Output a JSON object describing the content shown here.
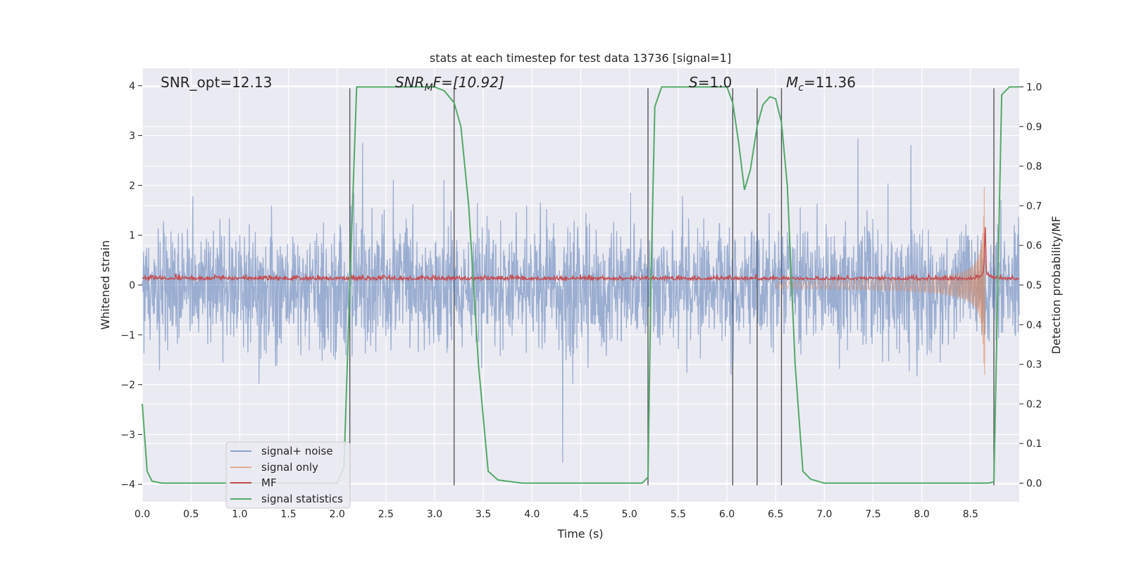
{
  "chart_data": {
    "type": "line",
    "title": "stats at each timestep for test data 13736 [signal=1]",
    "xlabel": "Time (s)",
    "ylabel_left": "Whitened strain",
    "ylabel_right": "Detection probability/MF",
    "xlim": [
      0.0,
      9.0
    ],
    "ylim_left": [
      -4.35,
      4.35
    ],
    "ylim_right": [
      -0.047,
      1.047
    ],
    "x_ticks": [
      0.0,
      0.5,
      1.0,
      1.5,
      2.0,
      2.5,
      3.0,
      3.5,
      4.0,
      4.5,
      5.0,
      5.5,
      6.0,
      6.5,
      7.0,
      7.5,
      8.0,
      8.5
    ],
    "y_ticks_left": [
      -4,
      -3,
      -2,
      -1,
      0,
      1,
      2,
      3,
      4
    ],
    "y_ticks_right": [
      0.0,
      0.1,
      0.2,
      0.3,
      0.4,
      0.5,
      0.6,
      0.7,
      0.8,
      0.9,
      1.0
    ],
    "grid": true,
    "annotations": {
      "snr_opt": "SNR_opt=12.13",
      "snr_mf_main": "SNR",
      "snr_mf_sub": "M",
      "snr_mf_tail": "F=[10.92]",
      "s_main": "S",
      "s_tail": "=1.0",
      "mc_main": "M",
      "mc_sub": "c",
      "mc_tail": "=11.36"
    },
    "vertical_lines_x": [
      2.13,
      3.2,
      5.19,
      6.06,
      6.31,
      6.56,
      8.74
    ],
    "legend_position": "lower-left",
    "series": [
      {
        "name": "signal+ noise",
        "color": "#4c72b0",
        "axis": "left",
        "description": "whitened noisy strain, amplitude approx +-2.5"
      },
      {
        "name": "signal only",
        "color": "#dd8452",
        "axis": "left",
        "description": "chirp signal growing to approx +-2.0 at t=8.65 s"
      },
      {
        "name": "MF",
        "color": "#c44e52",
        "axis": "right",
        "description": "matched filter output, approx 0.51 with spike to 0.63 at 8.65 s"
      },
      {
        "name": "signal statistics",
        "color": "#55a868",
        "axis": "right",
        "points": [
          [
            0.0,
            0.2
          ],
          [
            0.05,
            0.03
          ],
          [
            0.1,
            0.005
          ],
          [
            0.2,
            0.0
          ],
          [
            2.0,
            0.0
          ],
          [
            2.07,
            0.04
          ],
          [
            2.13,
            0.5
          ],
          [
            2.2,
            1.0
          ],
          [
            3.0,
            1.0
          ],
          [
            3.1,
            0.99
          ],
          [
            3.2,
            0.96
          ],
          [
            3.27,
            0.9
          ],
          [
            3.35,
            0.7
          ],
          [
            3.45,
            0.3
          ],
          [
            3.55,
            0.03
          ],
          [
            3.65,
            0.008
          ],
          [
            3.9,
            0.0
          ],
          [
            5.13,
            0.0
          ],
          [
            5.19,
            0.015
          ],
          [
            5.22,
            0.5
          ],
          [
            5.26,
            0.95
          ],
          [
            5.33,
            1.0
          ],
          [
            6.0,
            1.0
          ],
          [
            6.06,
            0.96
          ],
          [
            6.12,
            0.86
          ],
          [
            6.18,
            0.74
          ],
          [
            6.24,
            0.79
          ],
          [
            6.31,
            0.9
          ],
          [
            6.37,
            0.955
          ],
          [
            6.44,
            0.975
          ],
          [
            6.5,
            0.97
          ],
          [
            6.56,
            0.91
          ],
          [
            6.62,
            0.75
          ],
          [
            6.7,
            0.3
          ],
          [
            6.78,
            0.03
          ],
          [
            6.86,
            0.01
          ],
          [
            7.0,
            0.0
          ],
          [
            8.68,
            0.0
          ],
          [
            8.74,
            0.003
          ],
          [
            8.78,
            0.5
          ],
          [
            8.82,
            0.98
          ],
          [
            8.9,
            1.0
          ],
          [
            9.0,
            1.0
          ]
        ]
      }
    ]
  }
}
